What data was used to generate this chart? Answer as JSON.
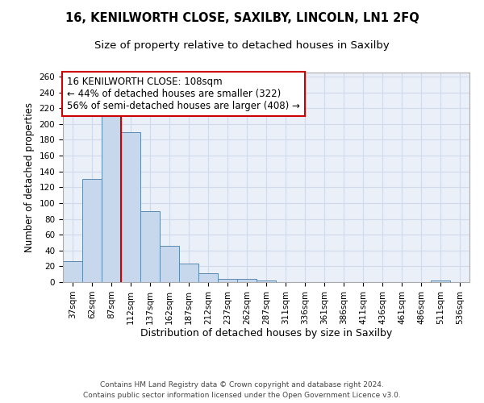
{
  "title1": "16, KENILWORTH CLOSE, SAXILBY, LINCOLN, LN1 2FQ",
  "title2": "Size of property relative to detached houses in Saxilby",
  "xlabel": "Distribution of detached houses by size in Saxilby",
  "ylabel": "Number of detached properties",
  "bin_labels": [
    "37sqm",
    "62sqm",
    "87sqm",
    "112sqm",
    "137sqm",
    "162sqm",
    "187sqm",
    "212sqm",
    "237sqm",
    "262sqm",
    "287sqm",
    "311sqm",
    "336sqm",
    "361sqm",
    "386sqm",
    "411sqm",
    "436sqm",
    "461sqm",
    "486sqm",
    "511sqm",
    "536sqm"
  ],
  "bar_values": [
    27,
    130,
    215,
    190,
    90,
    46,
    23,
    11,
    4,
    4,
    2,
    0,
    0,
    0,
    0,
    0,
    0,
    0,
    0,
    2,
    0
  ],
  "bar_color": "#c8d8ec",
  "bar_edge_color": "#5a8ab0",
  "red_line_bin": 3,
  "annotation_text": "16 KENILWORTH CLOSE: 108sqm\n← 44% of detached houses are smaller (322)\n56% of semi-detached houses are larger (408) →",
  "annotation_box_color": "#ffffff",
  "annotation_box_edge_color": "#cc0000",
  "red_line_color": "#cc0000",
  "ylim": [
    0,
    265
  ],
  "yticks": [
    0,
    20,
    40,
    60,
    80,
    100,
    120,
    140,
    160,
    180,
    200,
    220,
    240,
    260
  ],
  "grid_color": "#d0daea",
  "background_color": "#eaeff8",
  "footer_text": "Contains HM Land Registry data © Crown copyright and database right 2024.\nContains public sector information licensed under the Open Government Licence v3.0.",
  "title1_fontsize": 10.5,
  "title2_fontsize": 9.5,
  "xlabel_fontsize": 9,
  "ylabel_fontsize": 8.5,
  "tick_fontsize": 7.5,
  "annotation_fontsize": 8.5,
  "footer_fontsize": 6.5
}
